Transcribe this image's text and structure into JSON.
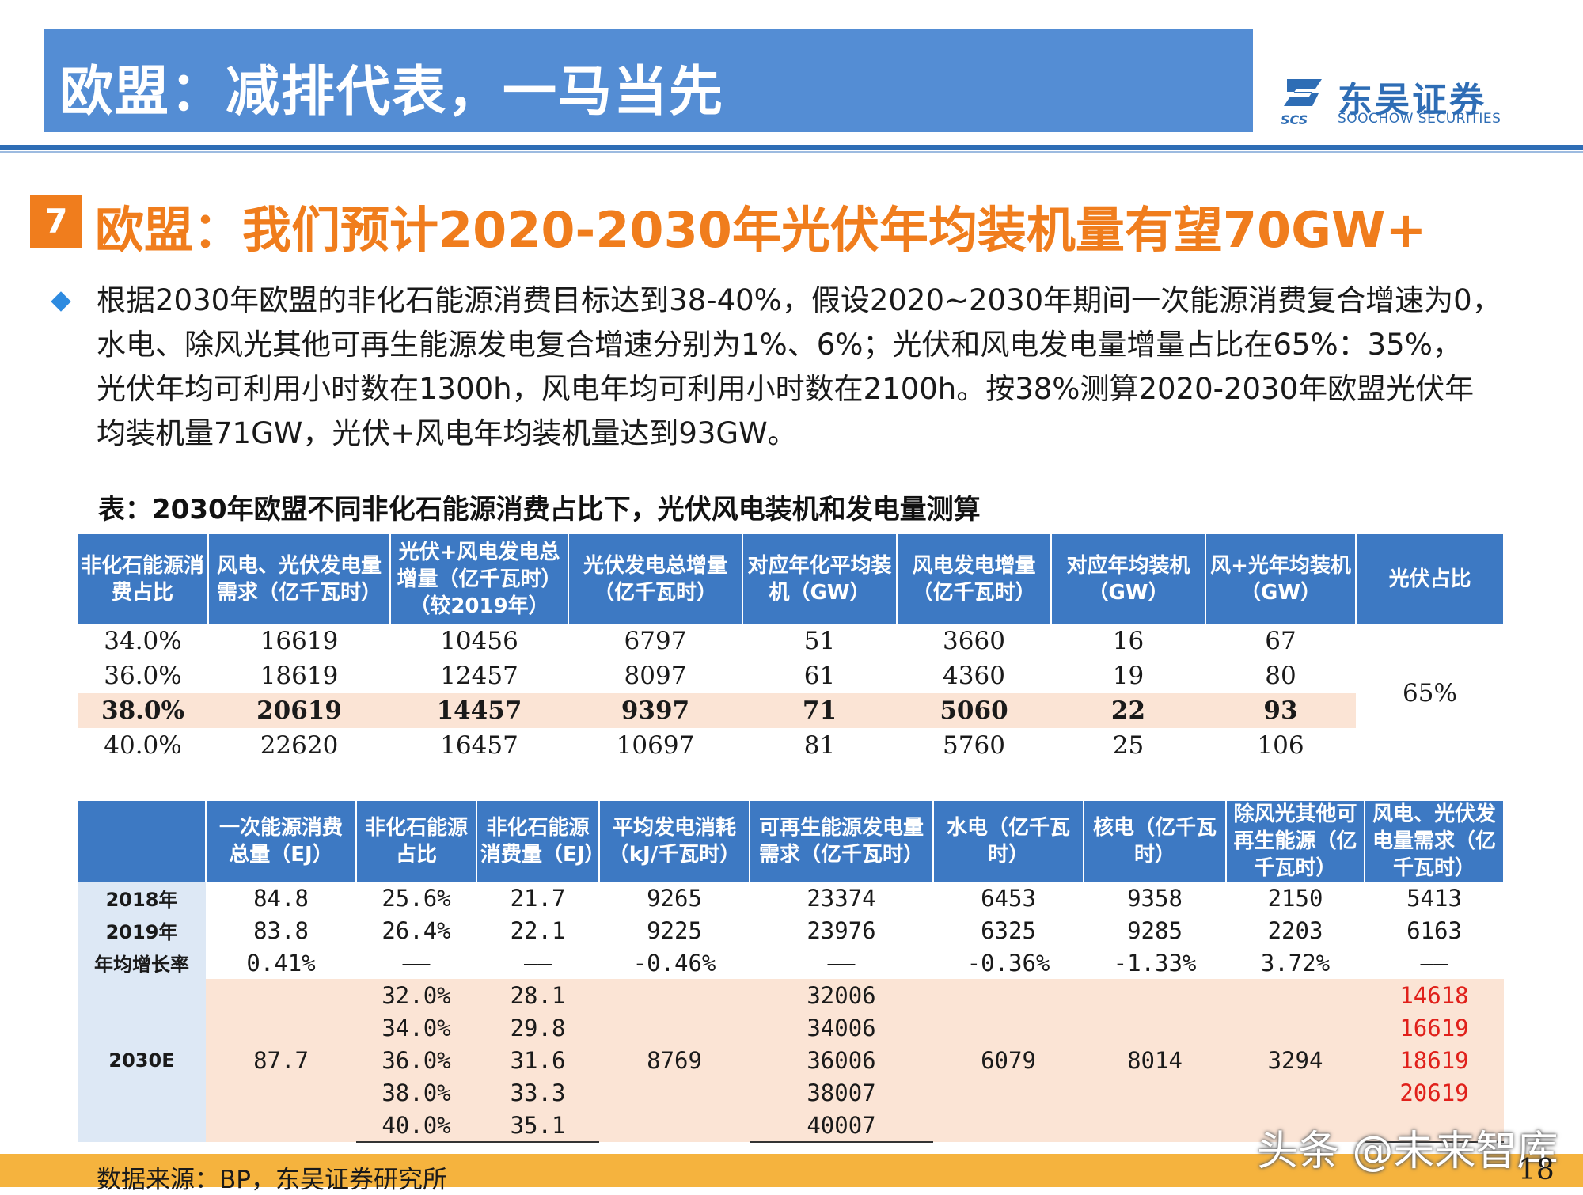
{
  "header": {
    "title": "欧盟：减排代表，一马当先"
  },
  "logo": {
    "mark": "SCS",
    "cn": "东吴证券",
    "en": "SOOCHOW SECURITIES"
  },
  "section": {
    "number": "7",
    "title": "欧盟：我们预计2020-2030年光伏年均装机量有望70GW+"
  },
  "bullet": {
    "lines": [
      "根据2030年欧盟的非化石能源消费目标达到38-40%，假设2020~2030年期间一次能源消费复合增速为0，",
      "水电、除风光其他可再生能源发电复合增速分别为1%、6%；光伏和风电发电量增量占比在65%：35%，",
      "光伏年均可利用小时数在1300h，风电年均可利用小时数在2100h。按38%测算2020-2030年欧盟光伏年",
      "均装机量71GW，光伏+风电年均装机量达到93GW。"
    ]
  },
  "table1": {
    "caption": "表：2030年欧盟不同非化石能源消费占比下，光伏风电装机和发电量测算",
    "headers": [
      "非化石能源消费占比",
      "风电、光伏发电量需求（亿千瓦时）",
      "光伏+风电发电总增量（亿千瓦时）（较2019年）",
      "光伏发电总增量（亿千瓦时）",
      "对应年化平均装机（GW）",
      "风电发电增量（亿千瓦时）",
      "对应年均装机（GW）",
      "风+光年均装机（GW）",
      "光伏占比"
    ],
    "rows": [
      [
        "34.0%",
        "16619",
        "10456",
        "6797",
        "51",
        "3660",
        "16",
        "67"
      ],
      [
        "36.0%",
        "18619",
        "12457",
        "8097",
        "61",
        "4360",
        "19",
        "80"
      ],
      [
        "38.0%",
        "20619",
        "14457",
        "9397",
        "71",
        "5060",
        "22",
        "93"
      ],
      [
        "40.0%",
        "22620",
        "16457",
        "10697",
        "81",
        "5760",
        "25",
        "106"
      ]
    ],
    "pv_share": "65%"
  },
  "table2": {
    "headers": [
      "",
      "一次能源消费总量（EJ）",
      "非化石能源占比",
      "非化石能源消费量（EJ）",
      "平均发电消耗（kJ/千瓦时）",
      "可再生能源发电量需求（亿千瓦时）",
      "水电（亿千瓦时）",
      "核电（亿千瓦时）",
      "除风光其他可再生能源（亿千瓦时）",
      "风电、光伏发电量需求（亿千瓦时）"
    ],
    "rows": [
      [
        "2018年",
        "84.8",
        "25.6%",
        "21.7",
        "9265",
        "23374",
        "6453",
        "9358",
        "2150",
        "5413"
      ],
      [
        "2019年",
        "83.8",
        "26.4%",
        "22.1",
        "9225",
        "23976",
        "6325",
        "9285",
        "2203",
        "6163"
      ],
      [
        "年均增长率",
        "0.41%",
        "——",
        "——",
        "-0.46%",
        "——",
        "-0.36%",
        "-1.33%",
        "3.72%",
        "——"
      ]
    ],
    "projection": {
      "label": "2030E",
      "primary_energy": "87.7",
      "avg_consumption": "8769",
      "hydro": "6079",
      "nuclear": "8014",
      "other_renewable": "3294",
      "rows": [
        [
          "32.0%",
          "28.1",
          "32006",
          "14618"
        ],
        [
          "34.0%",
          "29.8",
          "34006",
          "16619"
        ],
        [
          "36.0%",
          "31.6",
          "36006",
          "18619"
        ],
        [
          "38.0%",
          "33.3",
          "38007",
          "20619"
        ],
        [
          "40.0%",
          "35.1",
          "40007",
          ""
        ]
      ]
    }
  },
  "footer": {
    "source": "数据来源：BP，东吴证券研究所",
    "watermark": "头条 @未来智库",
    "page": "18"
  },
  "colors": {
    "header_blue": "#548dd4",
    "accent_orange": "#f07d1d",
    "table_blue": "#3d79c3",
    "highlight": "#fbe4d5",
    "red": "#e0201a"
  }
}
